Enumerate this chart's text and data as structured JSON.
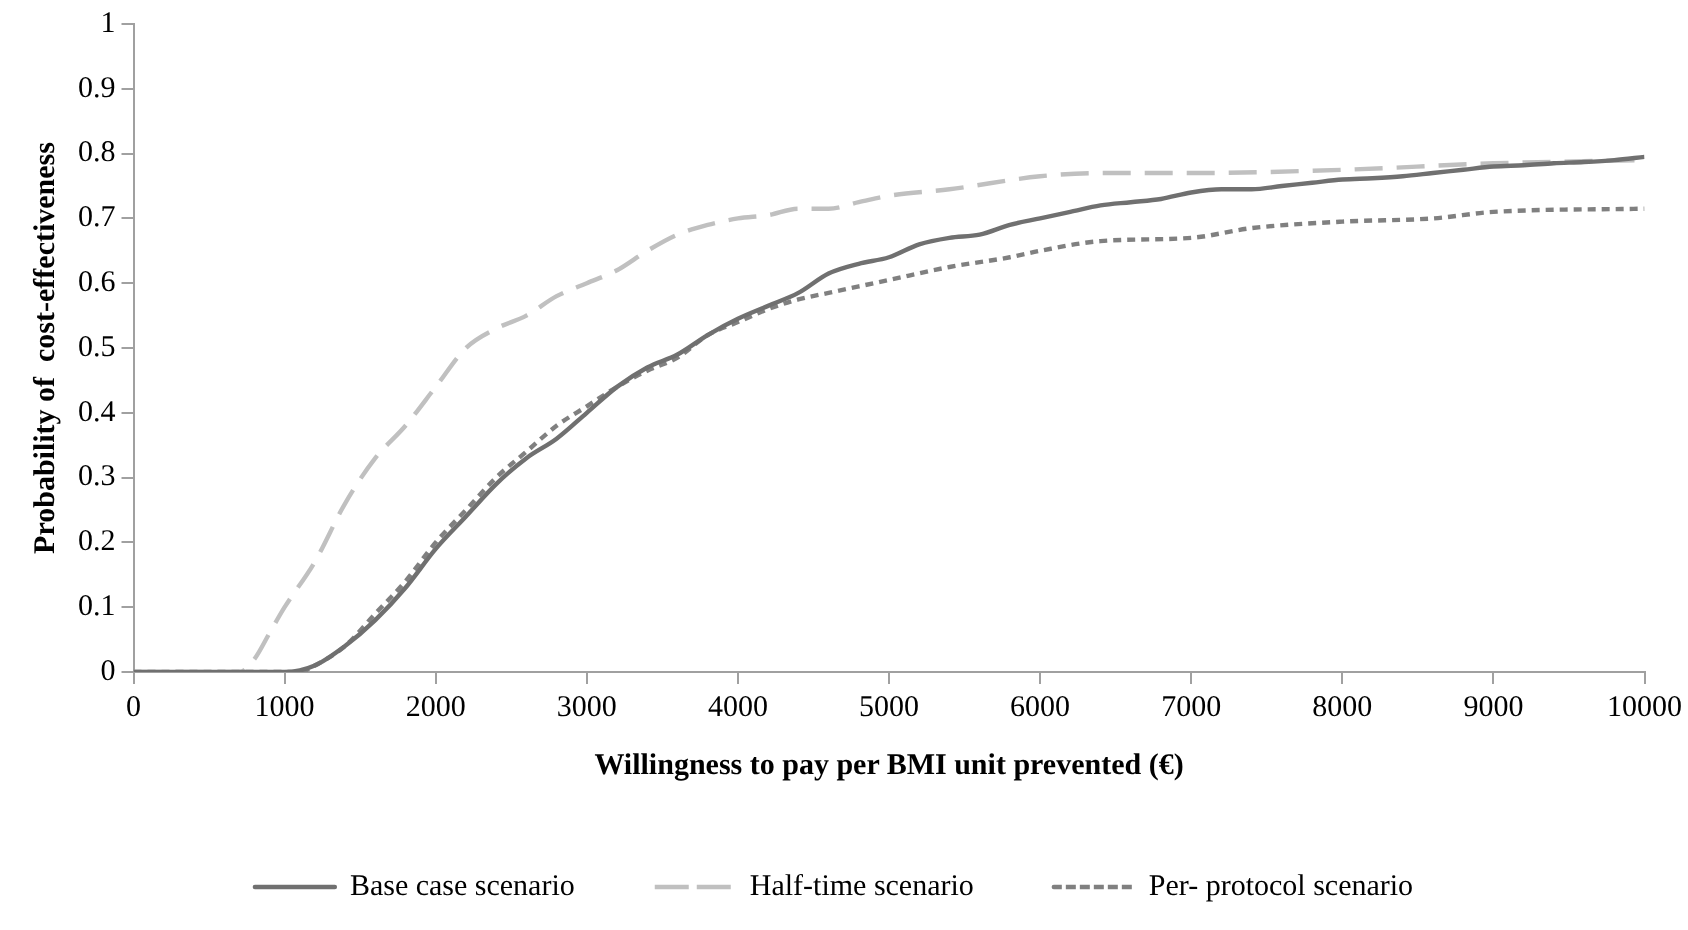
{
  "chart_data": {
    "type": "line",
    "xlabel": "Willingness to pay per BMI unit prevented (€)",
    "ylabel": "Probability of  cost-effectiveness",
    "xlim": [
      0,
      10000
    ],
    "xticks": [
      0,
      1000,
      2000,
      3000,
      4000,
      5000,
      6000,
      7000,
      8000,
      9000,
      10000
    ],
    "ylim": [
      0,
      1
    ],
    "yticks": [
      0,
      0.1,
      0.2,
      0.3,
      0.4,
      0.5,
      0.6,
      0.7,
      0.8,
      0.9,
      1
    ],
    "grid": false,
    "legend": "bottom",
    "marker": "none",
    "series": [
      {
        "name": "Base case scenario",
        "color": "#707070",
        "line_style": "solid",
        "x": [
          0,
          200,
          400,
          600,
          800,
          1000,
          1200,
          1400,
          1600,
          1800,
          2000,
          2200,
          2400,
          2600,
          2800,
          3000,
          3200,
          3400,
          3600,
          3800,
          4000,
          4200,
          4400,
          4600,
          4800,
          5000,
          5200,
          5400,
          5600,
          5800,
          6000,
          6200,
          6400,
          6600,
          6800,
          7000,
          7200,
          7400,
          7600,
          7800,
          8000,
          8200,
          8400,
          8600,
          8800,
          9000,
          9200,
          9400,
          9600,
          9800,
          10000
        ],
        "values": [
          0,
          0,
          0,
          0,
          0,
          0,
          0.01,
          0.04,
          0.08,
          0.13,
          0.19,
          0.24,
          0.29,
          0.33,
          0.36,
          0.4,
          0.44,
          0.47,
          0.49,
          0.52,
          0.545,
          0.565,
          0.585,
          0.615,
          0.63,
          0.64,
          0.66,
          0.67,
          0.675,
          0.69,
          0.7,
          0.71,
          0.72,
          0.725,
          0.73,
          0.74,
          0.745,
          0.745,
          0.75,
          0.755,
          0.76,
          0.762,
          0.765,
          0.77,
          0.775,
          0.78,
          0.782,
          0.785,
          0.787,
          0.79,
          0.795
        ]
      },
      {
        "name": "Half-time scenario",
        "color": "#c0c0c0",
        "line_style": "dashed",
        "x": [
          0,
          200,
          400,
          600,
          700,
          800,
          900,
          1000,
          1200,
          1400,
          1600,
          1800,
          2000,
          2200,
          2400,
          2600,
          2800,
          3000,
          3200,
          3400,
          3600,
          3800,
          4000,
          4200,
          4400,
          4600,
          4800,
          5000,
          5400,
          6000,
          6400,
          7000,
          8000,
          9000,
          10000
        ],
        "values": [
          0,
          0,
          0,
          0,
          0,
          0.02,
          0.06,
          0.1,
          0.17,
          0.26,
          0.33,
          0.38,
          0.44,
          0.5,
          0.53,
          0.55,
          0.58,
          0.6,
          0.62,
          0.65,
          0.675,
          0.69,
          0.7,
          0.705,
          0.715,
          0.715,
          0.725,
          0.735,
          0.745,
          0.765,
          0.77,
          0.77,
          0.775,
          0.785,
          0.79
        ]
      },
      {
        "name": "Per- protocol scenario",
        "color": "#808080",
        "line_style": "dotted",
        "x": [
          0,
          200,
          400,
          600,
          800,
          1000,
          1100,
          1200,
          1400,
          1600,
          1800,
          2000,
          2200,
          2400,
          2600,
          2800,
          3000,
          3200,
          3400,
          3600,
          3800,
          4000,
          4200,
          4400,
          4600,
          4800,
          5000,
          5400,
          5800,
          6000,
          6400,
          7000,
          7400,
          8000,
          8600,
          9000,
          10000
        ],
        "values": [
          0,
          0,
          0,
          0,
          0,
          0,
          0,
          0.01,
          0.04,
          0.09,
          0.14,
          0.2,
          0.25,
          0.3,
          0.34,
          0.38,
          0.41,
          0.44,
          0.465,
          0.485,
          0.52,
          0.54,
          0.56,
          0.575,
          0.585,
          0.595,
          0.605,
          0.625,
          0.64,
          0.65,
          0.665,
          0.67,
          0.685,
          0.695,
          0.7,
          0.71,
          0.715
        ]
      }
    ]
  }
}
